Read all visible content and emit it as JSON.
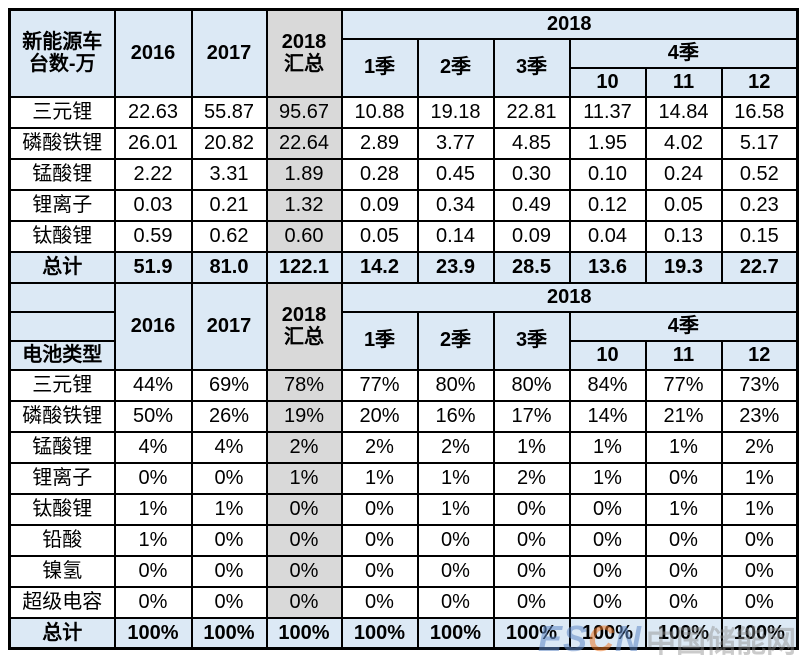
{
  "colors": {
    "header_blue": "#dce9f5",
    "summary_gray": "#d9d9d9",
    "total_row_blue": "#dce9f5",
    "border": "#000000"
  },
  "watermark": {
    "logo_parts": [
      "ES",
      "C",
      "N"
    ],
    "text": "中国储能网"
  },
  "chart_data": [
    {
      "type": "table",
      "corner_label": "新能源车\n台数-万",
      "col_2016": "2016",
      "col_2017": "2017",
      "col_2018_total": "2018\n汇总",
      "group_2018": "2018",
      "q1": "1季",
      "q2": "2季",
      "q3": "3季",
      "q4": "4季",
      "months": [
        "10",
        "11",
        "12"
      ],
      "rows": [
        {
          "label": "三元锂",
          "values": [
            "22.63",
            "55.87",
            "95.67",
            "10.88",
            "19.18",
            "22.81",
            "11.37",
            "14.84",
            "16.58"
          ]
        },
        {
          "label": "磷酸铁锂",
          "values": [
            "26.01",
            "20.82",
            "22.64",
            "2.89",
            "3.77",
            "4.85",
            "1.95",
            "4.02",
            "5.17"
          ]
        },
        {
          "label": "锰酸锂",
          "values": [
            "2.22",
            "3.31",
            "1.89",
            "0.28",
            "0.45",
            "0.30",
            "0.10",
            "0.24",
            "0.52"
          ]
        },
        {
          "label": "锂离子",
          "values": [
            "0.03",
            "0.21",
            "1.32",
            "0.09",
            "0.34",
            "0.49",
            "0.12",
            "0.05",
            "0.23"
          ]
        },
        {
          "label": "钛酸锂",
          "values": [
            "0.59",
            "0.62",
            "0.60",
            "0.05",
            "0.14",
            "0.09",
            "0.04",
            "0.13",
            "0.15"
          ]
        }
      ],
      "total": {
        "label": "总计",
        "values": [
          "51.9",
          "81.0",
          "122.1",
          "14.2",
          "23.9",
          "28.5",
          "13.6",
          "19.3",
          "22.7"
        ]
      }
    },
    {
      "type": "table",
      "corner_label": "电池类型",
      "corner_empty_1": "",
      "corner_empty_2": "",
      "col_2016": "2016",
      "col_2017": "2017",
      "col_2018_total": "2018\n汇总",
      "group_2018": "2018",
      "q1": "1季",
      "q2": "2季",
      "q3": "3季",
      "q4": "4季",
      "months": [
        "10",
        "11",
        "12"
      ],
      "rows": [
        {
          "label": "三元锂",
          "values": [
            "44%",
            "69%",
            "78%",
            "77%",
            "80%",
            "80%",
            "84%",
            "77%",
            "73%"
          ]
        },
        {
          "label": "磷酸铁锂",
          "values": [
            "50%",
            "26%",
            "19%",
            "20%",
            "16%",
            "17%",
            "14%",
            "21%",
            "23%"
          ]
        },
        {
          "label": "锰酸锂",
          "values": [
            "4%",
            "4%",
            "2%",
            "2%",
            "2%",
            "1%",
            "1%",
            "1%",
            "2%"
          ]
        },
        {
          "label": "锂离子",
          "values": [
            "0%",
            "0%",
            "1%",
            "1%",
            "1%",
            "2%",
            "1%",
            "0%",
            "1%"
          ]
        },
        {
          "label": "钛酸锂",
          "values": [
            "1%",
            "1%",
            "0%",
            "0%",
            "1%",
            "0%",
            "0%",
            "1%",
            "1%"
          ]
        },
        {
          "label": "铅酸",
          "values": [
            "1%",
            "0%",
            "0%",
            "0%",
            "0%",
            "0%",
            "0%",
            "0%",
            "0%"
          ]
        },
        {
          "label": "镍氢",
          "values": [
            "0%",
            "0%",
            "0%",
            "0%",
            "0%",
            "0%",
            "0%",
            "0%",
            "0%"
          ]
        },
        {
          "label": "超级电容",
          "values": [
            "0%",
            "0%",
            "0%",
            "0%",
            "0%",
            "0%",
            "0%",
            "0%",
            "0%"
          ]
        }
      ],
      "total": {
        "label": "总计",
        "values": [
          "100%",
          "100%",
          "100%",
          "100%",
          "100%",
          "100%",
          "100%",
          "100%",
          "100%"
        ]
      }
    }
  ]
}
